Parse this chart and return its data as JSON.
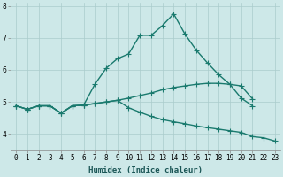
{
  "xlabel": "Humidex (Indice chaleur)",
  "x": [
    0,
    1,
    2,
    3,
    4,
    5,
    6,
    7,
    8,
    9,
    10,
    11,
    12,
    13,
    14,
    15,
    16,
    17,
    18,
    19,
    20,
    21,
    22,
    23
  ],
  "line1": [
    4.88,
    4.77,
    4.88,
    4.88,
    4.65,
    4.88,
    4.9,
    5.55,
    6.05,
    6.35,
    6.5,
    7.08,
    7.08,
    7.38,
    7.75,
    7.12,
    6.62,
    6.22,
    5.85,
    5.55,
    5.12,
    4.88,
    null,
    null
  ],
  "line2": [
    4.88,
    4.77,
    4.88,
    4.88,
    4.65,
    4.88,
    4.9,
    4.95,
    5.0,
    5.05,
    5.12,
    5.2,
    5.28,
    5.38,
    5.45,
    5.5,
    5.55,
    5.58,
    5.58,
    5.55,
    5.5,
    5.1,
    null,
    null
  ],
  "line3": [
    4.88,
    4.77,
    4.88,
    4.88,
    4.65,
    4.88,
    4.9,
    4.95,
    5.0,
    5.05,
    4.82,
    4.68,
    4.55,
    4.45,
    4.38,
    4.32,
    4.25,
    4.2,
    4.15,
    4.1,
    4.05,
    3.92,
    3.88,
    3.78
  ],
  "line_color": "#1a7a6e",
  "bg_color": "#cde8e8",
  "grid_color": "#aacccc",
  "marker": "+",
  "markersize": 4,
  "linewidth": 1.0,
  "ylim": [
    3.5,
    8.1
  ],
  "xlim": [
    -0.5,
    23.5
  ],
  "tick_fontsize": 5.5,
  "label_fontsize": 6.5
}
